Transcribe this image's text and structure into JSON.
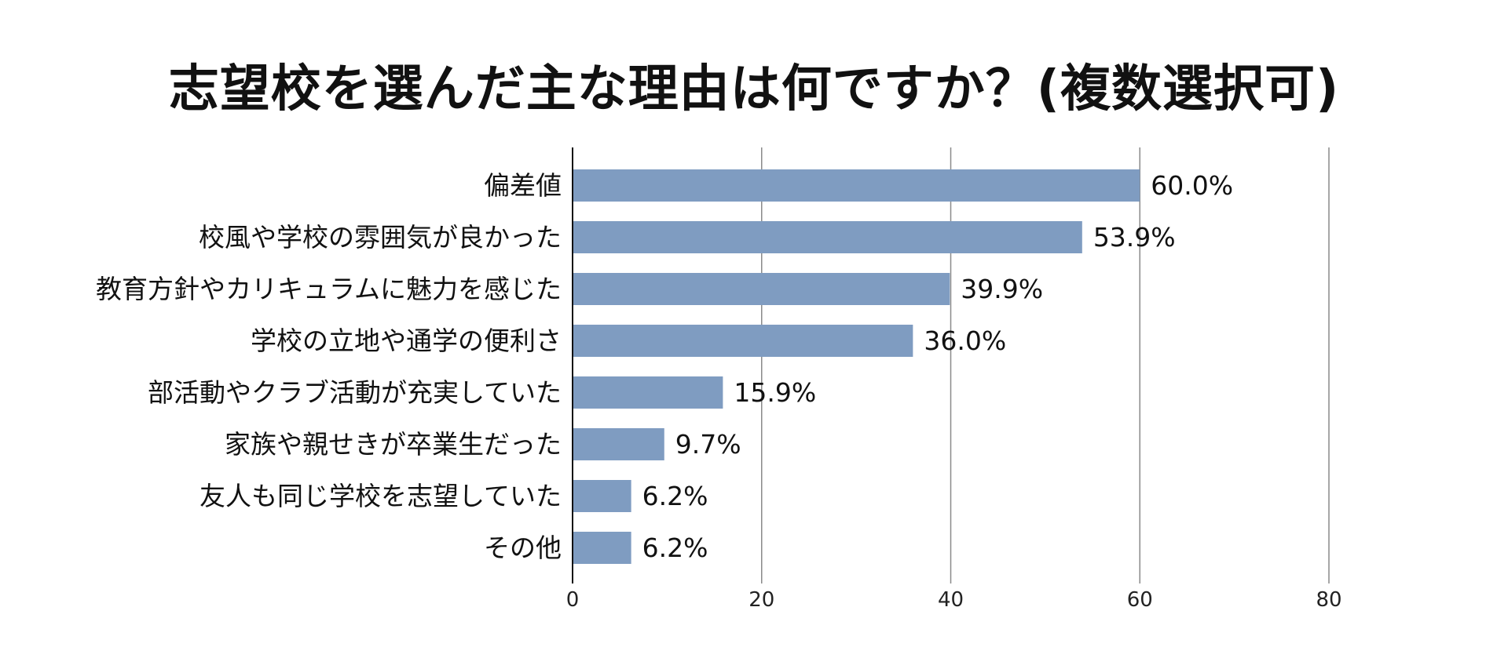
{
  "chart_data": {
    "type": "bar",
    "orientation": "horizontal",
    "title": "志望校を選んだ主な理由は何ですか？(複数選択可)",
    "categories": [
      "偏差値",
      "校風や学校の雰囲気が良かった",
      "教育方針やカリキュラムに魅力を感じた",
      "学校の立地や通学の便利さ",
      "部活動やクラブ活動が充実していた",
      "家族や親せきが卒業生だった",
      "友人も同じ学校を志望していた",
      "その他"
    ],
    "values": [
      60.0,
      53.9,
      39.9,
      36.0,
      15.9,
      9.7,
      6.2,
      6.2
    ],
    "value_labels": [
      "60.0%",
      "53.9%",
      "39.9%",
      "36.0%",
      "15.9%",
      "9.7%",
      "6.2%",
      "6.2%"
    ],
    "xlim": [
      0,
      80
    ],
    "xticks": [
      0,
      20,
      40,
      60,
      80
    ],
    "xtick_labels": [
      "0",
      "20",
      "40",
      "60",
      "80"
    ],
    "grid": true,
    "colors": {
      "bar": "#7f9cc1",
      "grid": "#8a8a8a",
      "axis": "#111111"
    }
  }
}
